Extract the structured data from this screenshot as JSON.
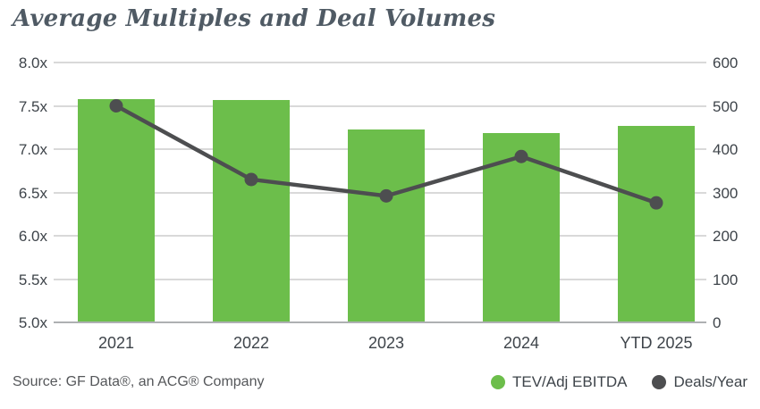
{
  "title": "Average Multiples and Deal Volumes",
  "source": "Source: GF Data®, an ACG® Company",
  "legend": [
    {
      "label": "TEV/Adj EBITDA",
      "color": "#6cbe4b"
    },
    {
      "label": "Deals/Year",
      "color": "#4d4e50"
    }
  ],
  "colors": {
    "bar": "#6cbe4b",
    "line": "#4d4e50",
    "gridline": "#d9d9d9",
    "baseline": "#aeb0b2",
    "title": "#4f5a64",
    "tick_text": "#3e444a"
  },
  "chart_data": {
    "type": "bar",
    "subtype": "combo-bar-line-dual-axis",
    "title": "Average Multiples and Deal Volumes",
    "categories": [
      "2021",
      "2022",
      "2023",
      "2024",
      "YTD 2025"
    ],
    "series": [
      {
        "name": "TEV/Adj EBITDA",
        "type": "bar",
        "axis": "left",
        "color": "#6cbe4b",
        "values": [
          7.58,
          7.57,
          7.23,
          7.19,
          7.27
        ]
      },
      {
        "name": "Deals/Year",
        "type": "line",
        "axis": "right",
        "color": "#4d4e50",
        "values": [
          500,
          330,
          292,
          383,
          276
        ]
      }
    ],
    "left_axis": {
      "min": 5.0,
      "max": 8.0,
      "tick_labels": [
        "8.0x",
        "7.5x",
        "7.0x",
        "6.5x",
        "6.0x",
        "5.5x",
        "5.0x"
      ]
    },
    "right_axis": {
      "min": 0,
      "max": 600,
      "tick_labels": [
        "600",
        "500",
        "400",
        "300",
        "200",
        "100",
        "0"
      ]
    },
    "grid": true,
    "legend_position": "bottom-right"
  }
}
